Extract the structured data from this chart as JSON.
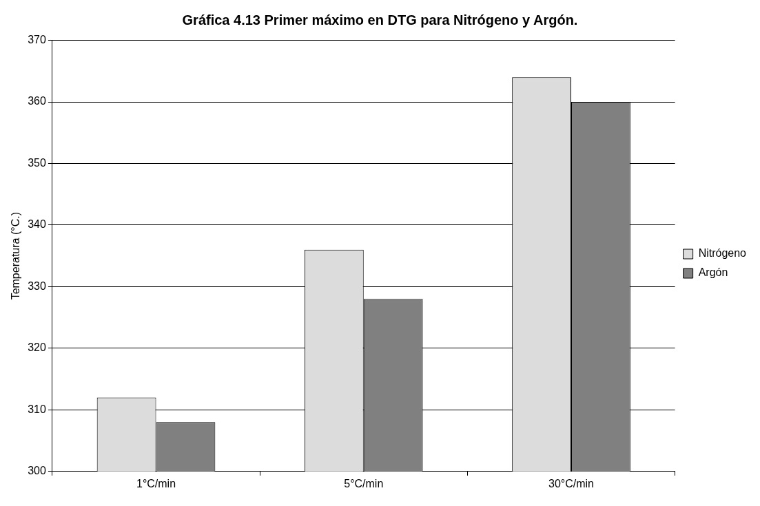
{
  "chart_data": {
    "type": "bar",
    "title": "Gráfica 4.13 Primer máximo en DTG para Nitrógeno y Argón.",
    "ylabel": "Temperatura (°C.)",
    "categories": [
      "1°C/min",
      "5°C/min",
      "30°C/min"
    ],
    "series": [
      {
        "name": "Nitrógeno",
        "color": "#dcdcdc",
        "values": [
          312,
          336,
          364
        ]
      },
      {
        "name": "Argón",
        "color": "#808080",
        "values": [
          308,
          328,
          360
        ]
      }
    ],
    "ylim": [
      300,
      370
    ],
    "yticks": [
      300,
      310,
      320,
      330,
      340,
      350,
      360,
      370
    ],
    "grid": "y",
    "legend": "right"
  }
}
